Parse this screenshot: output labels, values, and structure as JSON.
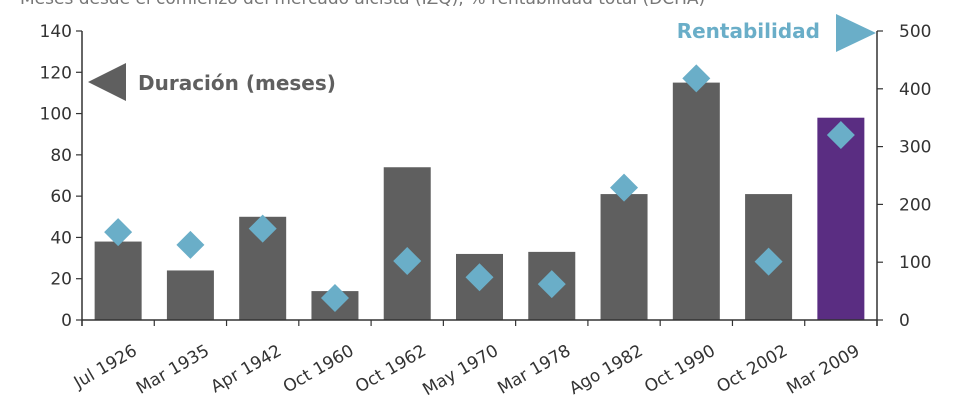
{
  "chart_data": {
    "type": "bar",
    "subtitle": "Meses desde el comienzo del mercado alcista (IZQ); % rentabilidad total (DCHA)",
    "categories": [
      "Jul 1926",
      "Mar 1935",
      "Apr 1942",
      "Oct 1960",
      "Oct 1962",
      "May 1970",
      "Mar 1978",
      "Ago 1982",
      "Oct 1990",
      "Oct 2002",
      "Mar 2009"
    ],
    "series": [
      {
        "name": "Duración (meses)",
        "kind": "bar",
        "axis": "left",
        "values": [
          38,
          24,
          50,
          14,
          74,
          32,
          33,
          61,
          115,
          61,
          98
        ],
        "highlight_index": 10
      },
      {
        "name": "Rentabilidad",
        "kind": "marker",
        "axis": "right",
        "values": [
          152,
          130,
          158,
          38,
          102,
          74,
          62,
          229,
          418,
          101,
          320
        ]
      }
    ],
    "ylim_left": [
      0,
      140
    ],
    "yticks_left": [
      0,
      20,
      40,
      60,
      80,
      100,
      120,
      140
    ],
    "ylim_right": [
      0,
      500
    ],
    "yticks_right": [
      0,
      100,
      200,
      300,
      400,
      500
    ],
    "grid": false,
    "legend": {
      "left_label": "Duración (meses)",
      "right_label": "Rentabilidad"
    },
    "colors": {
      "bar": "#5f5f5f",
      "bar_highlight": "#5a2d82",
      "marker": "#6aaec8",
      "axis": "#333333"
    }
  }
}
